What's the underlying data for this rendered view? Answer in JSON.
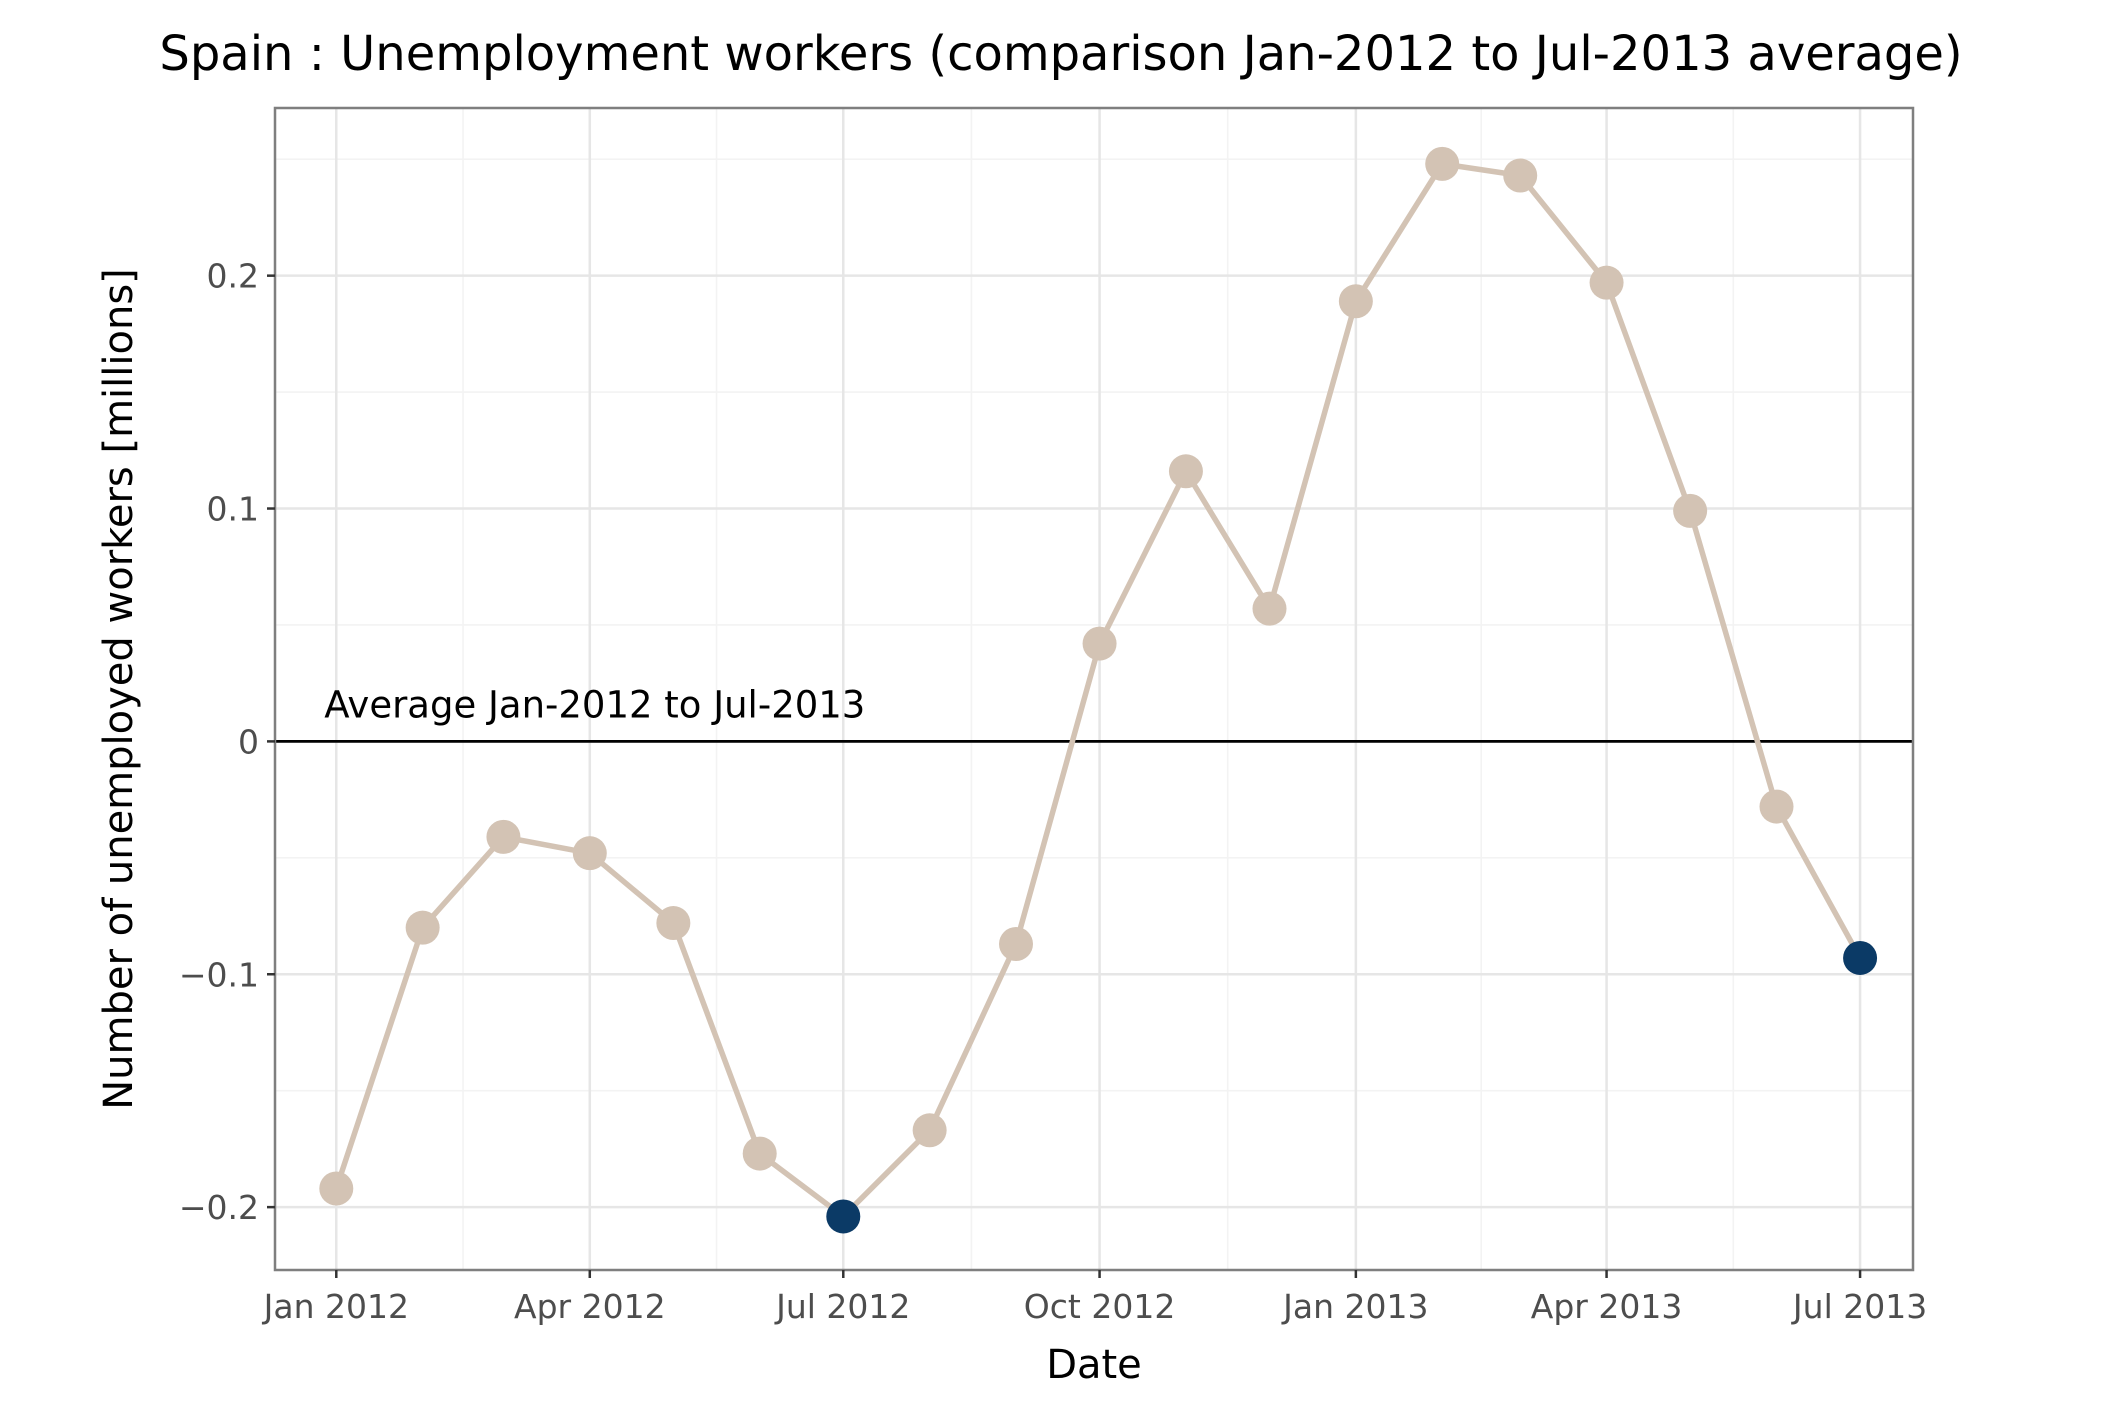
{
  "chart_data": {
    "type": "line",
    "title": "Spain : Unemployment workers (comparison Jan-2012 to Jul-2013 average)",
    "xlabel": "Date",
    "ylabel": "Number of unemployed workers [millions]",
    "x_ticks": [
      {
        "date": "2012-01-01",
        "label": "Jan 2012"
      },
      {
        "date": "2012-04-01",
        "label": "Apr 2012"
      },
      {
        "date": "2012-07-01",
        "label": "Jul 2012"
      },
      {
        "date": "2012-10-01",
        "label": "Oct 2012"
      },
      {
        "date": "2013-01-01",
        "label": "Jan 2013"
      },
      {
        "date": "2013-04-01",
        "label": "Apr 2013"
      },
      {
        "date": "2013-07-01",
        "label": "Jul 2013"
      }
    ],
    "y_ticks": [
      {
        "value": -0.2,
        "label": "−0.2"
      },
      {
        "value": -0.1,
        "label": "−0.1"
      },
      {
        "value": 0,
        "label": "0"
      },
      {
        "value": 0.1,
        "label": "0.1"
      },
      {
        "value": 0.2,
        "label": "0.2"
      }
    ],
    "ylim": [
      -0.227,
      0.272
    ],
    "xlim": [
      "2011-12-10",
      "2013-07-20"
    ],
    "grid": true,
    "reference_line": {
      "value": 0,
      "label": "Average Jan-2012 to Jul-2013",
      "color": "#000000"
    },
    "line_color": "#d3c3b4",
    "point_color": "#d3c3b4",
    "highlight_color": "#0b3a66",
    "series": [
      {
        "points": [
          {
            "date": "2012-01-01",
            "value": -0.192
          },
          {
            "date": "2012-02-01",
            "value": -0.08
          },
          {
            "date": "2012-03-01",
            "value": -0.041
          },
          {
            "date": "2012-04-01",
            "value": -0.048
          },
          {
            "date": "2012-05-01",
            "value": -0.078
          },
          {
            "date": "2012-06-01",
            "value": -0.177
          },
          {
            "date": "2012-07-01",
            "value": -0.204,
            "highlight": true
          },
          {
            "date": "2012-08-01",
            "value": -0.167
          },
          {
            "date": "2012-09-01",
            "value": -0.087
          },
          {
            "date": "2012-10-01",
            "value": 0.042
          },
          {
            "date": "2012-11-01",
            "value": 0.116
          },
          {
            "date": "2012-12-01",
            "value": 0.057
          },
          {
            "date": "2013-01-01",
            "value": 0.189
          },
          {
            "date": "2013-02-01",
            "value": 0.248
          },
          {
            "date": "2013-03-01",
            "value": 0.243
          },
          {
            "date": "2013-04-01",
            "value": 0.197
          },
          {
            "date": "2013-05-01",
            "value": 0.099
          },
          {
            "date": "2013-06-01",
            "value": -0.028
          },
          {
            "date": "2013-07-01",
            "value": -0.093,
            "highlight": true
          }
        ]
      }
    ]
  }
}
